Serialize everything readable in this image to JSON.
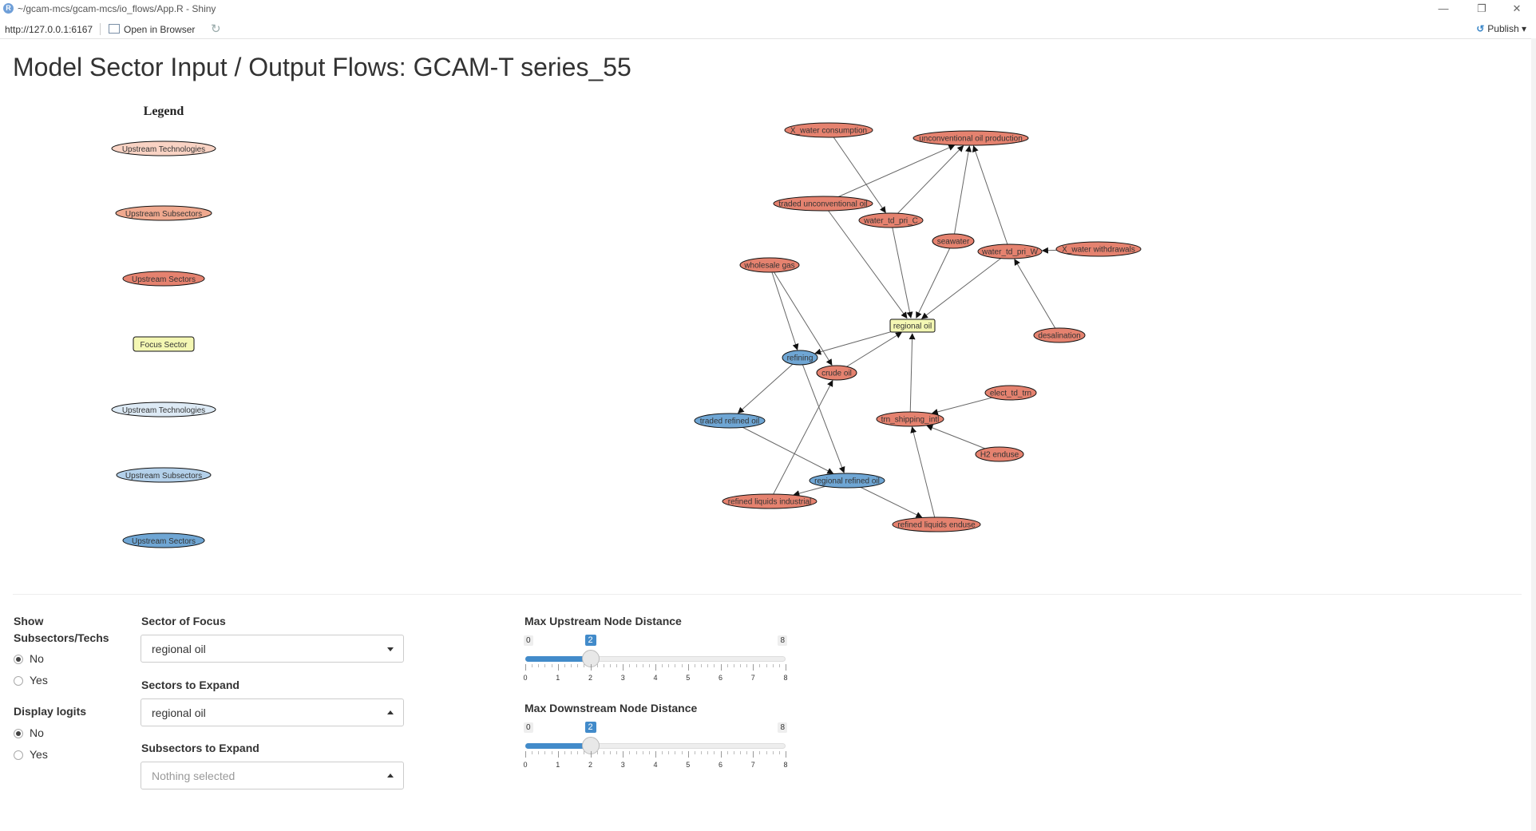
{
  "window": {
    "title": "~/gcam-mcs/gcam-mcs/io_flows/App.R - Shiny",
    "minimize": "—",
    "restore": "❐",
    "close": "✕"
  },
  "toolbar": {
    "url": "http://127.0.0.1:6167",
    "open_browser": "Open in Browser",
    "publish": "Publish"
  },
  "page": {
    "title": "Model Sector Input / Output Flows: GCAM-T series_55"
  },
  "legend": {
    "title": "Legend",
    "items": [
      {
        "label": "Upstream Technologies",
        "shape": "ellipse",
        "color": "#f9d3c4"
      },
      {
        "label": "Upstream Subsectors",
        "shape": "ellipse",
        "color": "#f0a98f"
      },
      {
        "label": "Upstream Sectors",
        "shape": "ellipse",
        "color": "#e5826f"
      },
      {
        "label": "Focus Sector",
        "shape": "box",
        "color": "#f4f7b3"
      },
      {
        "label": "Upstream Technologies",
        "shape": "ellipse",
        "color": "#ddeaf5"
      },
      {
        "label": "Upstream Subsectors",
        "shape": "ellipse",
        "color": "#b3d0ea"
      },
      {
        "label": "Upstream Sectors",
        "shape": "ellipse",
        "color": "#6fa6d4"
      }
    ]
  },
  "graph": {
    "nodes": [
      {
        "id": "water_consumption",
        "label": "X_water consumption",
        "kind": "upstream_sector"
      },
      {
        "id": "unconv_prod",
        "label": "unconventional oil production",
        "kind": "upstream_sector"
      },
      {
        "id": "traded_unconv",
        "label": "traded unconventional oil",
        "kind": "upstream_sector"
      },
      {
        "id": "water_td_C",
        "label": "water_td_pri_C",
        "kind": "upstream_sector"
      },
      {
        "id": "seawater",
        "label": "seawater",
        "kind": "upstream_sector"
      },
      {
        "id": "water_td_W",
        "label": "water_td_pri_W",
        "kind": "upstream_sector"
      },
      {
        "id": "water_withdrawals",
        "label": "X_water withdrawals",
        "kind": "upstream_sector"
      },
      {
        "id": "wholesale_gas",
        "label": "wholesale gas",
        "kind": "upstream_sector"
      },
      {
        "id": "regional_oil",
        "label": "regional oil",
        "kind": "focus"
      },
      {
        "id": "desalination",
        "label": "desalination",
        "kind": "upstream_sector"
      },
      {
        "id": "refining",
        "label": "refining",
        "kind": "downstream_sector"
      },
      {
        "id": "crude_oil",
        "label": "crude oil",
        "kind": "upstream_sector"
      },
      {
        "id": "elect_td_trn",
        "label": "elect_td_trn",
        "kind": "upstream_sector"
      },
      {
        "id": "traded_refined",
        "label": "traded refined oil",
        "kind": "downstream_sector"
      },
      {
        "id": "trn_shipping",
        "label": "trn_shipping_intl",
        "kind": "upstream_sector"
      },
      {
        "id": "h2_enduse",
        "label": "H2 enduse",
        "kind": "upstream_sector"
      },
      {
        "id": "regional_refined",
        "label": "regional refined oil",
        "kind": "downstream_sector"
      },
      {
        "id": "refined_industrial",
        "label": "refined liquids industrial",
        "kind": "upstream_sector"
      },
      {
        "id": "refined_enduse",
        "label": "refined liquids enduse",
        "kind": "upstream_sector"
      }
    ],
    "edges": [
      [
        "water_consumption",
        "water_td_C"
      ],
      [
        "traded_unconv",
        "unconv_prod"
      ],
      [
        "water_td_C",
        "unconv_prod"
      ],
      [
        "seawater",
        "unconv_prod"
      ],
      [
        "water_td_W",
        "unconv_prod"
      ],
      [
        "water_withdrawals",
        "water_td_W"
      ],
      [
        "desalination",
        "water_td_W"
      ],
      [
        "traded_unconv",
        "regional_oil"
      ],
      [
        "water_td_C",
        "regional_oil"
      ],
      [
        "seawater",
        "regional_oil"
      ],
      [
        "water_td_W",
        "regional_oil"
      ],
      [
        "regional_oil",
        "refining"
      ],
      [
        "crude_oil",
        "regional_oil"
      ],
      [
        "trn_shipping",
        "regional_oil"
      ],
      [
        "wholesale_gas",
        "refining"
      ],
      [
        "wholesale_gas",
        "crude_oil"
      ],
      [
        "refining",
        "traded_refined"
      ],
      [
        "refining",
        "regional_refined"
      ],
      [
        "refined_industrial",
        "crude_oil"
      ],
      [
        "traded_refined",
        "regional_refined"
      ],
      [
        "regional_refined",
        "refined_industrial"
      ],
      [
        "regional_refined",
        "refined_enduse"
      ],
      [
        "refined_enduse",
        "trn_shipping"
      ],
      [
        "elect_td_trn",
        "trn_shipping"
      ],
      [
        "h2_enduse",
        "trn_shipping"
      ]
    ]
  },
  "controls": {
    "show_subsectors": {
      "label": "Show Subsectors/Techs",
      "options": [
        "No",
        "Yes"
      ],
      "selected": "No"
    },
    "display_logits": {
      "label": "Display logits",
      "options": [
        "No",
        "Yes"
      ],
      "selected": "No"
    },
    "sector_of_focus": {
      "label": "Sector of Focus",
      "value": "regional oil"
    },
    "sectors_to_expand": {
      "label": "Sectors to Expand",
      "value": "regional oil"
    },
    "subsectors_to_expand": {
      "label": "Subsectors to Expand",
      "placeholder": "Nothing selected"
    },
    "max_upstream": {
      "label": "Max Upstream Node Distance",
      "min": 0,
      "max": 8,
      "value": 2
    },
    "max_downstream": {
      "label": "Max Downstream Node Distance",
      "min": 0,
      "max": 8,
      "value": 2
    }
  },
  "colors": {
    "upstream_sector": "#e5826f",
    "downstream_sector": "#6fa6d4",
    "focus": "#f4f7b3",
    "accent": "#428bca"
  }
}
